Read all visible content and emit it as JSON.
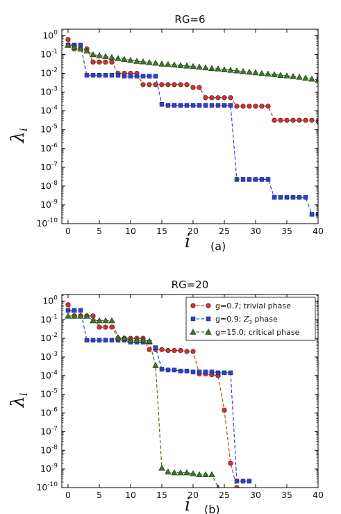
{
  "chart_data": [
    {
      "type": "line",
      "title": "RG=6",
      "panel_label": "(a)",
      "xlabel": "i",
      "ylabel": "λ",
      "ylabel_sub": "i",
      "xlim": [
        -1,
        40
      ],
      "ylim_exponent": [
        -10,
        0.35
      ],
      "yscale": "log",
      "xticks": [
        0,
        5,
        10,
        15,
        20,
        25,
        30,
        35,
        40
      ],
      "yticks_exponent": [
        0,
        -1,
        -2,
        -3,
        -4,
        -5,
        -6,
        -7,
        -8,
        -9,
        -10
      ],
      "legend": "none",
      "grid": false,
      "series": [
        {
          "key": "trivial",
          "color": "#d8302a",
          "marker": "circle",
          "x": [
            0,
            1,
            2,
            3,
            4,
            5,
            6,
            7,
            8,
            9,
            10,
            11,
            12,
            13,
            14,
            15,
            16,
            17,
            18,
            19,
            20,
            21,
            22,
            23,
            24,
            25,
            26,
            27,
            28,
            29,
            30,
            31,
            32,
            33,
            34,
            35,
            36,
            37,
            38,
            39,
            40
          ],
          "logy": [
            -0.2,
            -0.7,
            -0.7,
            -0.7,
            -1.4,
            -1.4,
            -1.4,
            -1.4,
            -2.0,
            -2.0,
            -2.0,
            -2.0,
            -2.6,
            -2.6,
            -2.6,
            -2.6,
            -2.6,
            -2.6,
            -2.6,
            -2.6,
            -2.75,
            -2.75,
            -3.3,
            -3.3,
            -3.3,
            -3.3,
            -3.3,
            -3.75,
            -3.75,
            -3.75,
            -3.75,
            -3.75,
            -3.75,
            -4.5,
            -4.5,
            -4.5,
            -4.5,
            -4.5,
            -4.5,
            -4.5,
            -4.55
          ]
        },
        {
          "key": "z3",
          "color": "#2b3fd6",
          "marker": "square",
          "x": [
            0,
            1,
            2,
            3,
            4,
            5,
            6,
            7,
            8,
            9,
            10,
            11,
            12,
            13,
            14,
            15,
            16,
            17,
            18,
            19,
            20,
            21,
            22,
            23,
            24,
            25,
            26,
            27,
            28,
            29,
            30,
            31,
            32,
            33,
            34,
            35,
            36,
            37,
            38,
            39,
            40
          ],
          "logy": [
            -0.5,
            -0.5,
            -0.5,
            -2.1,
            -2.1,
            -2.1,
            -2.1,
            -2.1,
            -2.1,
            -2.15,
            -2.15,
            -2.15,
            -2.15,
            -2.15,
            -2.15,
            -3.65,
            -3.7,
            -3.7,
            -3.7,
            -3.7,
            -3.7,
            -3.7,
            -3.7,
            -3.7,
            -3.7,
            -3.7,
            -3.7,
            -7.65,
            -7.65,
            -7.65,
            -7.65,
            -7.65,
            -7.65,
            -8.6,
            -8.6,
            -8.6,
            -8.6,
            -8.6,
            -8.6,
            -9.5,
            -9.5
          ]
        },
        {
          "key": "critical",
          "color": "#3a7a20",
          "marker": "triangle",
          "x": [
            0,
            1,
            2,
            3,
            4,
            5,
            6,
            7,
            8,
            9,
            10,
            11,
            12,
            13,
            14,
            15,
            16,
            17,
            18,
            19,
            20,
            21,
            22,
            23,
            24,
            25,
            26,
            27,
            28,
            29,
            30,
            31,
            32,
            33,
            34,
            35,
            36,
            37,
            38,
            39,
            40
          ],
          "logy": [
            -0.5,
            -0.6,
            -0.7,
            -0.8,
            -1.0,
            -1.05,
            -1.1,
            -1.15,
            -1.2,
            -1.25,
            -1.3,
            -1.35,
            -1.38,
            -1.42,
            -1.45,
            -1.5,
            -1.52,
            -1.55,
            -1.58,
            -1.6,
            -1.63,
            -1.66,
            -1.7,
            -1.73,
            -1.76,
            -1.8,
            -1.83,
            -1.86,
            -1.9,
            -1.93,
            -1.96,
            -2.0,
            -2.03,
            -2.06,
            -2.1,
            -2.13,
            -2.16,
            -2.2,
            -2.25,
            -2.3,
            -2.35
          ]
        }
      ]
    },
    {
      "type": "line",
      "title": "RG=20",
      "panel_label": "(b)",
      "xlabel": "i",
      "ylabel": "λ",
      "ylabel_sub": "i",
      "xlim": [
        -1,
        40
      ],
      "ylim_exponent": [
        -10,
        0.35
      ],
      "yscale": "log",
      "xticks": [
        0,
        5,
        10,
        15,
        20,
        25,
        30,
        35,
        40
      ],
      "yticks_exponent": [
        0,
        -1,
        -2,
        -3,
        -4,
        -5,
        -6,
        -7,
        -8,
        -9,
        -10
      ],
      "legend": "top-right",
      "grid": false,
      "series": [
        {
          "key": "trivial",
          "name_prefix": "g=0.7;  trivial phase",
          "color": "#d8302a",
          "marker": "circle",
          "x": [
            0,
            1,
            2,
            3,
            4,
            5,
            6,
            7,
            8,
            9,
            10,
            11,
            12,
            13,
            14,
            15,
            16,
            17,
            18,
            19,
            20,
            21,
            22,
            23,
            24,
            25,
            26,
            27
          ],
          "logy": [
            -0.2,
            -0.8,
            -0.8,
            -0.8,
            -0.8,
            -1.4,
            -1.4,
            -1.4,
            -2.0,
            -2.0,
            -2.0,
            -2.0,
            -2.0,
            -2.6,
            -2.6,
            -2.6,
            -2.65,
            -2.65,
            -2.65,
            -2.7,
            -2.7,
            -3.9,
            -3.9,
            -3.95,
            -4.0,
            -5.85,
            -8.7,
            -10.0
          ]
        },
        {
          "key": "z3",
          "name_prefix": "g=0.9; ",
          "name_symbol": "Z",
          "name_sub": "3",
          "name_suffix": " phase",
          "color": "#2b3fd6",
          "marker": "square",
          "x": [
            0,
            1,
            2,
            3,
            4,
            5,
            6,
            7,
            8,
            9,
            10,
            11,
            12,
            13,
            14,
            15,
            16,
            17,
            18,
            19,
            20,
            21,
            22,
            23,
            24,
            25,
            26,
            27,
            28,
            29
          ],
          "logy": [
            -0.5,
            -0.5,
            -0.5,
            -2.1,
            -2.1,
            -2.1,
            -2.1,
            -2.1,
            -2.1,
            -2.1,
            -2.2,
            -2.2,
            -2.2,
            -2.2,
            -2.5,
            -3.65,
            -3.7,
            -3.7,
            -3.75,
            -3.75,
            -3.8,
            -3.8,
            -3.8,
            -3.8,
            -3.85,
            -3.85,
            -3.85,
            -9.65,
            -9.65,
            -9.65
          ]
        },
        {
          "key": "critical",
          "name_prefix": "g=15.0;  critical phase",
          "color": "#3a7a20",
          "marker": "triangle",
          "x": [
            0,
            1,
            2,
            3,
            4,
            5,
            6,
            7,
            8,
            9,
            10,
            11,
            12,
            13,
            14,
            15,
            16,
            17,
            18,
            19,
            20,
            21,
            22,
            23,
            24
          ],
          "logy": [
            -0.8,
            -0.8,
            -0.8,
            -0.8,
            -1.05,
            -1.05,
            -1.05,
            -1.05,
            -1.95,
            -2.0,
            -2.1,
            -2.1,
            -2.1,
            -2.15,
            -3.45,
            -8.95,
            -9.15,
            -9.2,
            -9.2,
            -9.2,
            -9.25,
            -9.3,
            -9.3,
            -9.3,
            -10.0
          ]
        }
      ]
    }
  ]
}
